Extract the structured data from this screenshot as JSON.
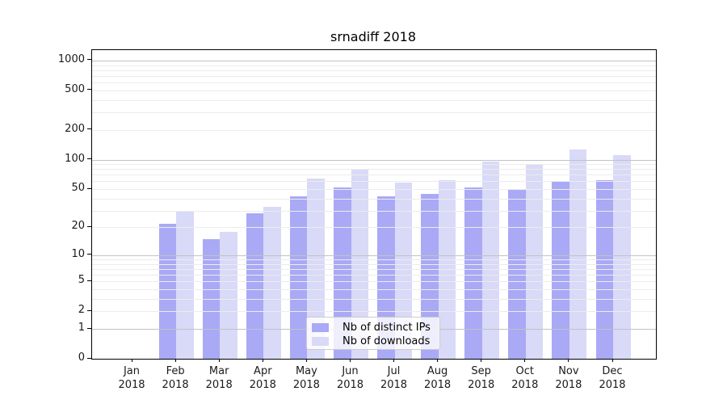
{
  "title": "srnadiff 2018",
  "chart_data": {
    "type": "bar",
    "title": "srnadiff 2018",
    "categories": [
      "Jan 2018",
      "Feb 2018",
      "Mar 2018",
      "Apr 2018",
      "May 2018",
      "Jun 2018",
      "Jul 2018",
      "Aug 2018",
      "Sep 2018",
      "Oct 2018",
      "Nov 2018",
      "Dec 2018"
    ],
    "series": [
      {
        "name": "Nb of distinct IPs",
        "color": "#a9a9f6",
        "values": [
          0,
          22,
          15,
          28,
          42,
          52,
          42,
          45,
          52,
          50,
          60,
          62
        ]
      },
      {
        "name": "Nb of downloads",
        "color": "#d9d9f8",
        "values": [
          0,
          29,
          18,
          33,
          64,
          79,
          58,
          62,
          95,
          90,
          126,
          111
        ]
      }
    ],
    "xlabel": "",
    "ylabel": "",
    "y_scale": "log1p",
    "ylim": [
      0,
      1275
    ],
    "y_ticks": [
      0,
      1,
      2,
      5,
      10,
      20,
      50,
      100,
      200,
      500,
      1000
    ],
    "y_major_gridlines": [
      1,
      10,
      100,
      1000
    ],
    "y_minor_gridlines": [
      2,
      3,
      4,
      5,
      6,
      7,
      8,
      9,
      20,
      30,
      40,
      50,
      60,
      70,
      80,
      90,
      200,
      300,
      400,
      500,
      600,
      700,
      800,
      900
    ],
    "grid": true,
    "legend_position": "lower center"
  }
}
